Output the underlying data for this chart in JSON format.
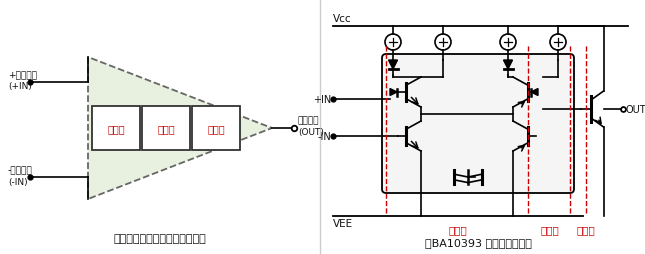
{
  "bg_color": "#ffffff",
  "triangle_fill": "#e8f0e0",
  "dashed_color": "#666666",
  "box_edge": "#333333",
  "box_fill": "#ffffff",
  "red_text": "#cc0000",
  "black_text": "#111111",
  "divider_color": "#cccccc",
  "left_title": "【普通比较器的内部电路结构】",
  "right_title": "【BA10393 内部等效电路】",
  "box1_label": "输入段",
  "box2_label": "增益段",
  "box3_label": "输出段",
  "pin_plus_line1": "+输入引脚",
  "pin_plus_line2": "(+IN)",
  "pin_minus_line1": "-输入引脚",
  "pin_minus_line2": "(-IN)",
  "pin_out_line1": "输出引脚",
  "pin_out_line2": "(OUT)",
  "vcc_label": "Vcc",
  "vee_label": "VEE",
  "in_plus_label": "+IN",
  "in_minus_label": "-IN",
  "out_label": "OUT",
  "right_label1": "输入段",
  "right_label2": "增益段",
  "right_label3": "输出段"
}
